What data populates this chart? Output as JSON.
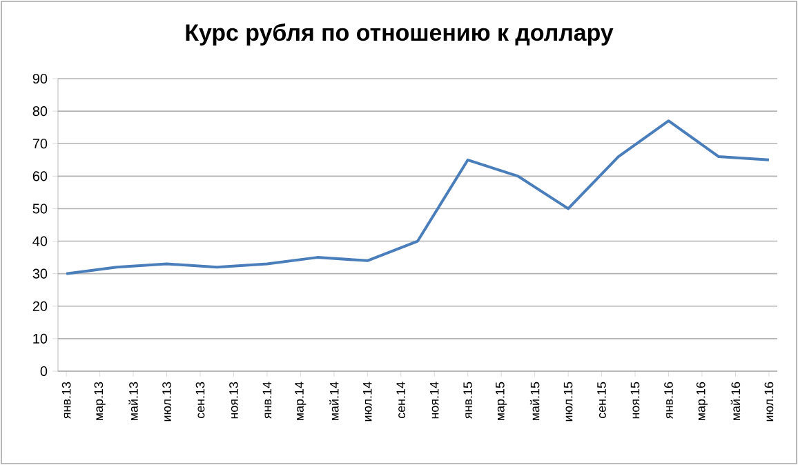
{
  "chart_data": {
    "type": "line",
    "title": "Курс рубля по отношению к доллару",
    "x": [
      "2013-01",
      "2013-04",
      "2013-07",
      "2013-10",
      "2014-01",
      "2014-04",
      "2014-07",
      "2014-10",
      "2015-01",
      "2015-04",
      "2015-07",
      "2015-10",
      "2016-01",
      "2016-04",
      "2016-07"
    ],
    "values": [
      30,
      32,
      33,
      32,
      33,
      35,
      34,
      40,
      65,
      60,
      50,
      66,
      77,
      66,
      65
    ],
    "color": "#4a7ebb",
    "xlim": [
      "2012-12-16",
      "2016-07-16"
    ],
    "xticks": [
      {
        "value": "2013-01",
        "label": "янв.13"
      },
      {
        "value": "2013-03",
        "label": "мар.13"
      },
      {
        "value": "2013-05",
        "label": "май.13"
      },
      {
        "value": "2013-07",
        "label": "июл.13"
      },
      {
        "value": "2013-09",
        "label": "сен.13"
      },
      {
        "value": "2013-11",
        "label": "ноя.13"
      },
      {
        "value": "2014-01",
        "label": "янв.14"
      },
      {
        "value": "2014-03",
        "label": "мар.14"
      },
      {
        "value": "2014-05",
        "label": "май.14"
      },
      {
        "value": "2014-07",
        "label": "июл.14"
      },
      {
        "value": "2014-09",
        "label": "сен.14"
      },
      {
        "value": "2014-11",
        "label": "ноя.14"
      },
      {
        "value": "2015-01",
        "label": "янв.15"
      },
      {
        "value": "2015-03",
        "label": "мар.15"
      },
      {
        "value": "2015-05",
        "label": "май.15"
      },
      {
        "value": "2015-07",
        "label": "июл.15"
      },
      {
        "value": "2015-09",
        "label": "сен.15"
      },
      {
        "value": "2015-11",
        "label": "ноя.15"
      },
      {
        "value": "2016-01",
        "label": "янв.16"
      },
      {
        "value": "2016-03",
        "label": "мар.16"
      },
      {
        "value": "2016-05",
        "label": "май.16"
      },
      {
        "value": "2016-07",
        "label": "июл.16"
      }
    ],
    "ylim": [
      0,
      90
    ],
    "yticks": [
      0,
      10,
      20,
      30,
      40,
      50,
      60,
      70,
      80,
      90
    ],
    "grid": "y",
    "line_style": "solid",
    "marker": "none"
  }
}
